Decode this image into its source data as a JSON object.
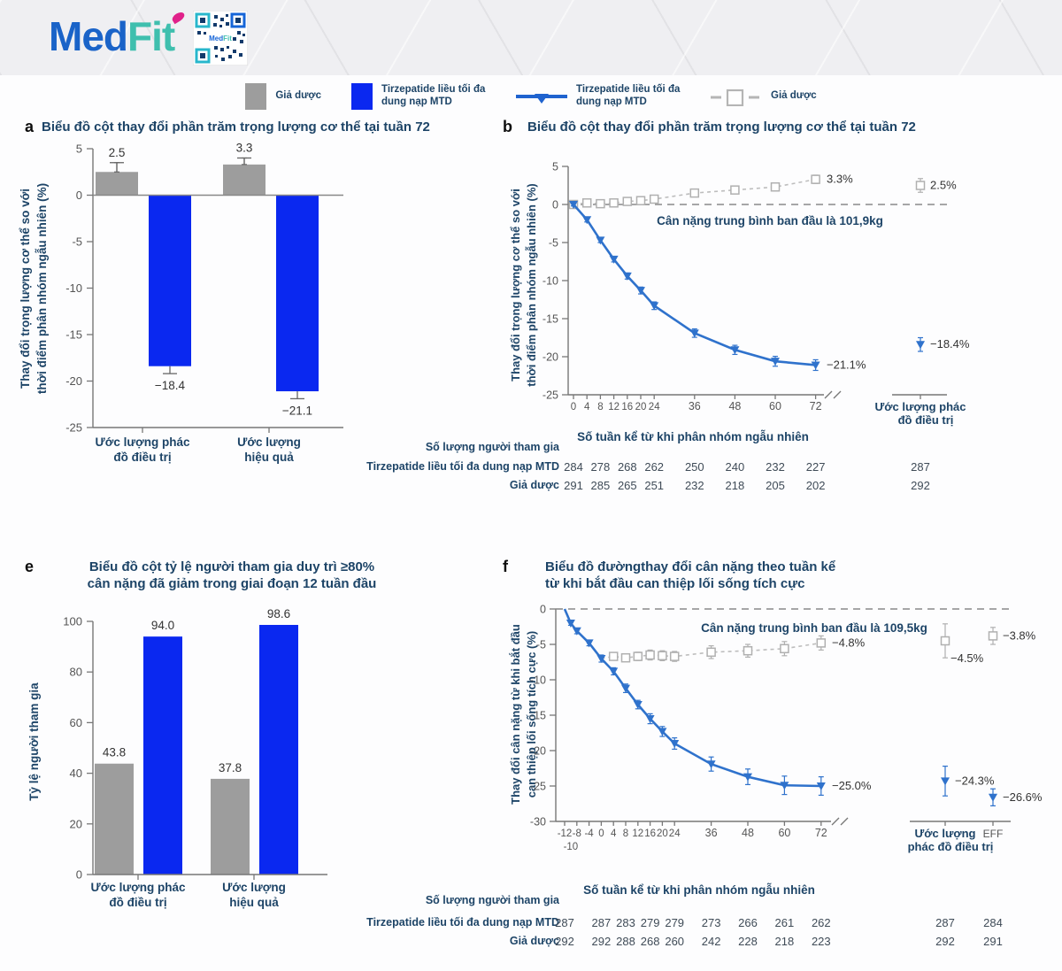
{
  "header": {
    "logo_med": "Med",
    "logo_fit": "Fit",
    "qr_label": "MedFit"
  },
  "colors": {
    "bar_blue": "#0a28f0",
    "bar_gray": "#9d9d9d",
    "line_blue": "#2f72cc",
    "line_gray": "#bdbdbd",
    "navy_text": "#1d4467",
    "tick_text": "#555555",
    "value_text": "#333333"
  },
  "legend": [
    {
      "type": "square-gray",
      "label": "Giả dược"
    },
    {
      "type": "square-blue",
      "label": "Tirzepatide liều tối đa dung nạp MTD"
    },
    {
      "type": "line-triangle",
      "label": "Tirzepatide liều tối đa dung nạp MTD"
    },
    {
      "type": "dash-square",
      "label": "Giả dược"
    }
  ],
  "panels": {
    "a": {
      "letter": "a",
      "title": "Biểu đồ cột thay đổi phần trăm trọng lượng cơ thể tại tuần 72"
    },
    "b": {
      "letter": "b",
      "title": "Biểu đồ cột thay đổi phần trăm trọng lượng cơ thể tại tuần 72"
    },
    "e": {
      "letter": "e",
      "title_line1": "Biểu đồ cột tỷ lệ người tham gia duy trì ≥80%",
      "title_line2": "cân nặng đã giảm trong giai đoạn 12 tuần đầu"
    },
    "f": {
      "letter": "f",
      "title_line1": "Biểu đồ đườngthay đổi cân nặng theo tuần kể",
      "title_line2": "từ khi bắt đầu can thiệp lối sống tích cực"
    }
  },
  "chart_data": [
    {
      "panel": "a",
      "type": "bar",
      "title": "Biểu đồ cột thay đổi phần trăm trọng lượng cơ thể tại tuần 72",
      "ylabel_lines": [
        "Thay đổi trọng lượng cơ thể so với",
        "thời điểm phân nhóm ngẫu nhiên (%)"
      ],
      "ylim": [
        -25,
        5
      ],
      "yticks": [
        5,
        0,
        -5,
        -10,
        -15,
        -20,
        -25
      ],
      "categories": [
        "Ước lượng phác đồ điều trị",
        "Ước lượng hiệu quả"
      ],
      "category_lines": [
        [
          "Ước lượng phác",
          "đồ điều trị"
        ],
        [
          "Ước lượng",
          "hiệu quả"
        ]
      ],
      "series": [
        {
          "name": "Giả dược",
          "color": "gray",
          "values": [
            2.5,
            3.3
          ],
          "errors": [
            1.0,
            0.7
          ],
          "value_labels": [
            "2.5",
            "3.3"
          ]
        },
        {
          "name": "Tirzepatide liều tối đa dung nạp MTD",
          "color": "blue",
          "values": [
            -18.4,
            -21.1
          ],
          "errors": [
            0.8,
            0.8
          ],
          "value_labels": [
            "−18.4",
            "−21.1"
          ]
        }
      ]
    },
    {
      "panel": "b",
      "type": "line",
      "title": "Biểu đồ cột thay đổi phần trăm trọng lượng cơ thể tại tuần 72",
      "ylabel_lines": [
        "Thay đổi trọng lượng cơ thể so với",
        "thời điểm phân nhóm ngẫu nhiên (%)"
      ],
      "xlabel": "Số tuần kể từ khi phân nhóm ngẫu nhiên",
      "ylim": [
        -25,
        5
      ],
      "yticks": [
        5,
        0,
        -5,
        -10,
        -15,
        -20,
        -25
      ],
      "xticks": [
        0,
        4,
        8,
        12,
        16,
        20,
        24,
        36,
        48,
        60,
        72
      ],
      "zero_line_annotation": "Cân nặng trung bình ban đầu là 101,9kg",
      "series": [
        {
          "name": "Giả dược",
          "marker": "square",
          "color": "gray",
          "marker_from": 0,
          "x": [
            0,
            4,
            8,
            12,
            16,
            20,
            24,
            36,
            48,
            60,
            72
          ],
          "y": [
            0,
            0.2,
            0.1,
            0.2,
            0.4,
            0.5,
            0.7,
            1.5,
            1.9,
            2.3,
            3.3
          ],
          "err": [
            0.15,
            0.2,
            0.2,
            0.25,
            0.25,
            0.3,
            0.3,
            0.4,
            0.45,
            0.5,
            0.55
          ],
          "end_label": "3.3%"
        },
        {
          "name": "Tirzepatide liều tối đa dung nạp MTD",
          "marker": "triangle",
          "color": "blue",
          "marker_from": 0,
          "x": [
            0,
            4,
            8,
            12,
            16,
            20,
            24,
            36,
            48,
            60,
            72
          ],
          "y": [
            0,
            -2.0,
            -4.7,
            -7.2,
            -9.4,
            -11.3,
            -13.3,
            -16.9,
            -19.1,
            -20.6,
            -21.1
          ],
          "err": [
            0.2,
            0.3,
            0.3,
            0.35,
            0.4,
            0.45,
            0.5,
            0.55,
            0.6,
            0.65,
            0.7
          ],
          "end_label": "−21.1%"
        }
      ],
      "offset_axis_label_lines": [
        "Ước lượng phác",
        "đồ điều trị"
      ],
      "offset_points": [
        {
          "col": 0,
          "marker": "square",
          "y": 2.5,
          "err": 0.9,
          "label": "2.5%"
        },
        {
          "col": 0,
          "marker": "triangle",
          "y": -18.4,
          "err": 0.9,
          "label": "−18.4%"
        }
      ],
      "participants": {
        "header": "Số lượng người tham gia",
        "weeks": [
          0,
          8,
          16,
          24,
          36,
          48,
          60,
          72
        ],
        "rows": [
          {
            "label": "Tirzepatide liều tối đa dung nạp MTD",
            "values": [
              284,
              278,
              268,
              262,
              250,
              240,
              232,
              227
            ],
            "offset_values": [
              287
            ]
          },
          {
            "label": "Giả dược",
            "values": [
              291,
              285,
              265,
              251,
              232,
              218,
              205,
              202
            ],
            "offset_values": [
              292
            ]
          }
        ]
      }
    },
    {
      "panel": "e",
      "type": "bar",
      "title_lines": [
        "Biểu đồ cột tỷ lệ người tham gia duy trì ≥80%",
        "cân nặng đã giảm trong giai đoạn 12 tuần đầu"
      ],
      "ylabel": "Tỷ lệ người tham gia",
      "ylim": [
        0,
        100
      ],
      "yticks": [
        0,
        20,
        40,
        60,
        80,
        100
      ],
      "categories": [
        "Ước lượng phác đồ điều trị",
        "Ước lượng hiệu quả"
      ],
      "category_lines": [
        [
          "Ước lượng phác",
          "đồ điều trị"
        ],
        [
          "Ước lượng",
          "hiệu quả"
        ]
      ],
      "series": [
        {
          "name": "Giả dược",
          "color": "gray",
          "values": [
            43.8,
            37.8
          ],
          "value_labels": [
            "43.8",
            "37.8"
          ]
        },
        {
          "name": "Tirzepatide liều tối đa dung nạp MTD",
          "color": "blue",
          "values": [
            94.0,
            98.6
          ],
          "value_labels": [
            "94.0",
            "98.6"
          ]
        }
      ]
    },
    {
      "panel": "f",
      "type": "line",
      "title_lines": [
        "Biểu đồ đườngthay đổi cân nặng theo tuần kể",
        "từ khi bắt đầu can thiệp lối sống tích cực"
      ],
      "ylabel_lines": [
        "Thay đổi cân nặng từ khi bắt đầu",
        "can thiệp lối sống tích cực (%)"
      ],
      "xlabel": "Số tuần kể từ khi phân nhóm ngẫu nhiên",
      "ylim": [
        -30,
        0
      ],
      "yticks": [
        0,
        -5,
        -10,
        -15,
        -20,
        -25,
        -30
      ],
      "xticks": [
        -12,
        -8,
        -4,
        0,
        4,
        8,
        12,
        16,
        20,
        24,
        36,
        48,
        60,
        72
      ],
      "xtick_extra": "-10",
      "zero_line_annotation": "Cân nặng trung bình ban đầu là 109,5kg",
      "series": [
        {
          "name": "Giả dược",
          "marker": "square",
          "color": "gray",
          "marker_from": 1,
          "x": [
            0,
            4,
            8,
            12,
            16,
            20,
            24,
            36,
            48,
            60,
            72
          ],
          "y": [
            -7.0,
            -6.7,
            -6.9,
            -6.7,
            -6.5,
            -6.6,
            -6.7,
            -6.1,
            -5.9,
            -5.6,
            -4.8
          ],
          "err": [
            0,
            0.5,
            0.5,
            0.6,
            0.7,
            0.7,
            0.7,
            0.9,
            0.9,
            1.0,
            1.0
          ],
          "end_label": "−4.8%"
        },
        {
          "name": "Tirzepatide liều tối đa dung nạp MTD",
          "marker": "triangle",
          "color": "blue",
          "marker_from": 1,
          "x": [
            -12,
            -10,
            -8,
            -4,
            0,
            4,
            8,
            12,
            16,
            20,
            24,
            36,
            48,
            60,
            72
          ],
          "y": [
            0,
            -2.0,
            -3.1,
            -4.8,
            -7.0,
            -8.8,
            -11.2,
            -13.5,
            -15.5,
            -17.3,
            -19.0,
            -21.9,
            -23.7,
            -24.9,
            -25.0
          ],
          "err": [
            0,
            0.3,
            0.4,
            0.4,
            0.5,
            0.5,
            0.6,
            0.6,
            0.7,
            0.7,
            0.8,
            1.0,
            1.1,
            1.3,
            1.3
          ],
          "end_label": "−25.0%"
        }
      ],
      "offset_axis_label_lines": [
        "Ước lượng",
        "phác đồ điều trị"
      ],
      "offset_axis_label2": "EFF",
      "offset_points": [
        {
          "col": 0,
          "marker": "square",
          "y": -4.5,
          "err": 2.4,
          "label": "−4.5%",
          "label_pos": "below"
        },
        {
          "col": 1,
          "marker": "square",
          "y": -3.8,
          "err": 1.2,
          "label": "−3.8%",
          "label_pos": "right"
        },
        {
          "col": 0,
          "marker": "triangle",
          "y": -24.3,
          "err": 2.1,
          "label": "−24.3%",
          "label_pos": "right"
        },
        {
          "col": 1,
          "marker": "triangle",
          "y": -26.6,
          "err": 1.2,
          "label": "−26.6%",
          "label_pos": "right"
        }
      ],
      "participants": {
        "header": "Số lượng người tham gia",
        "weeks": [
          -12,
          0,
          8,
          16,
          24,
          36,
          48,
          60,
          72
        ],
        "rows": [
          {
            "label": "Tirzepatide liều tối đa dung nạp MTD",
            "values": [
              287,
              287,
              283,
              279,
              279,
              273,
              266,
              261,
              262
            ],
            "offset_values": [
              287,
              284
            ]
          },
          {
            "label": "Giả dược",
            "values": [
              292,
              292,
              288,
              268,
              260,
              242,
              228,
              218,
              223
            ],
            "offset_values": [
              292,
              291
            ]
          }
        ]
      }
    }
  ]
}
